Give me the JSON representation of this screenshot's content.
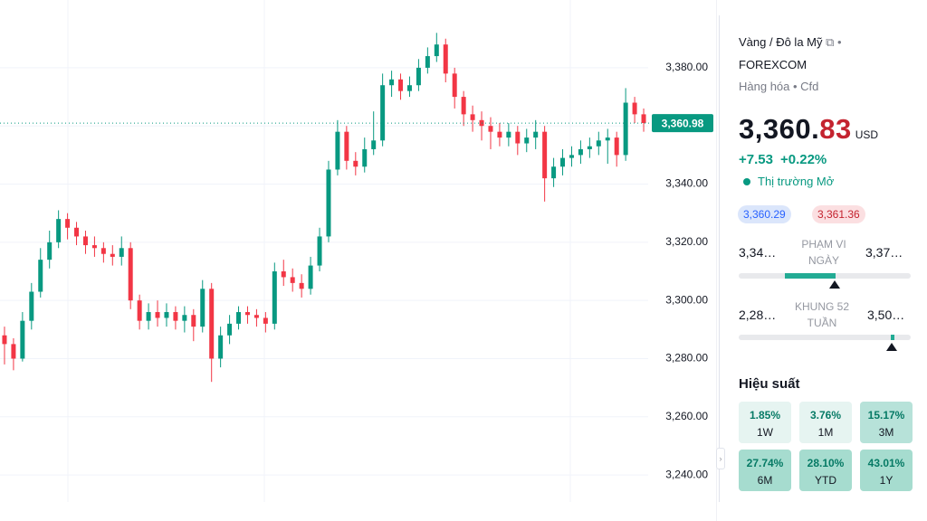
{
  "chart_data": {
    "type": "candlestick",
    "up_color": "#089981",
    "down_color": "#f23645",
    "open": [
      3288,
      3285,
      3280,
      3293,
      3303,
      3314,
      3320,
      3328,
      3325,
      3322,
      3319,
      3318,
      3316,
      3315,
      3318,
      3300,
      3293,
      3296,
      3294,
      3296,
      3293,
      3295,
      3291,
      3304,
      3280,
      3288,
      3292,
      3296,
      3295,
      3294,
      3292,
      3310,
      3308,
      3306,
      3304,
      3312,
      3322,
      3345,
      3358,
      3348,
      3346,
      3352,
      3355,
      3374,
      3376,
      3372,
      3374,
      3380,
      3384,
      3388,
      3378,
      3370,
      3364,
      3362,
      3360,
      3358,
      3356,
      3358,
      3354,
      3356,
      3358,
      3342,
      3346,
      3349,
      3350,
      3352,
      3353,
      3355,
      3356,
      3350,
      3368,
      3364
    ],
    "high": [
      3291,
      3287,
      3296,
      3306,
      3318,
      3324,
      3331,
      3330,
      3327,
      3324,
      3322,
      3320,
      3319,
      3322,
      3320,
      3302,
      3299,
      3300,
      3299,
      3298,
      3298,
      3297,
      3307,
      3306,
      3291,
      3295,
      3298,
      3298,
      3297,
      3296,
      3313,
      3314,
      3311,
      3309,
      3315,
      3325,
      3348,
      3362,
      3360,
      3351,
      3356,
      3365,
      3378,
      3379,
      3378,
      3377,
      3383,
      3387,
      3392,
      3390,
      3380,
      3372,
      3367,
      3365,
      3363,
      3361,
      3361,
      3360,
      3359,
      3362,
      3360,
      3349,
      3352,
      3353,
      3355,
      3356,
      3358,
      3359,
      3358,
      3373,
      3370,
      3366
    ],
    "low": [
      3278,
      3276,
      3279,
      3290,
      3301,
      3311,
      3318,
      3321,
      3319,
      3316,
      3315,
      3313,
      3312,
      3312,
      3297,
      3290,
      3290,
      3291,
      3291,
      3290,
      3289,
      3286,
      3289,
      3272,
      3277,
      3285,
      3290,
      3292,
      3291,
      3289,
      3290,
      3305,
      3303,
      3301,
      3302,
      3310,
      3320,
      3343,
      3345,
      3343,
      3344,
      3350,
      3353,
      3370,
      3369,
      3370,
      3372,
      3378,
      3382,
      3375,
      3366,
      3360,
      3358,
      3355,
      3352,
      3353,
      3353,
      3350,
      3351,
      3352,
      3334,
      3339,
      3343,
      3346,
      3347,
      3349,
      3350,
      3347,
      3346,
      3348,
      3361,
      3358
    ],
    "close": [
      3285,
      3280,
      3293,
      3303,
      3314,
      3320,
      3328,
      3325,
      3322,
      3319,
      3318,
      3316,
      3315,
      3318,
      3300,
      3293,
      3296,
      3294,
      3296,
      3293,
      3295,
      3291,
      3304,
      3280,
      3288,
      3292,
      3296,
      3295,
      3294,
      3292,
      3310,
      3308,
      3306,
      3304,
      3312,
      3322,
      3345,
      3358,
      3348,
      3346,
      3352,
      3355,
      3374,
      3376,
      3372,
      3374,
      3380,
      3384,
      3388,
      3378,
      3370,
      3364,
      3362,
      3360,
      3358,
      3356,
      3358,
      3354,
      3356,
      3358,
      3342,
      3346,
      3349,
      3350,
      3352,
      3353,
      3355,
      3356,
      3350,
      3368,
      3364,
      3361
    ],
    "ylim": [
      3230.7,
      3403.3
    ],
    "yticks": [
      {
        "value": 3240,
        "label": "3,240.00"
      },
      {
        "value": 3260,
        "label": "3,260.00"
      },
      {
        "value": 3280,
        "label": "3,280.00"
      },
      {
        "value": 3300,
        "label": "3,300.00"
      },
      {
        "value": 3320,
        "label": "3,320.00"
      },
      {
        "value": 3340,
        "label": "3,340.00"
      },
      {
        "value": 3360,
        "label": "3,360.00"
      },
      {
        "value": 3380,
        "label": "3,380.00"
      }
    ],
    "last_price": {
      "value": 3360.98,
      "label": "3,360.98"
    },
    "grid": true
  },
  "sidebar": {
    "symbol": "Vàng / Đô la Mỹ",
    "exchange": "FOREXCOM",
    "tags": [
      "Hàng hóa",
      "Cfd"
    ],
    "price_main": "3,360.",
    "price_decimal": "83",
    "currency": "USD",
    "change": "+7.53",
    "change_percent": "+0.22%",
    "status": "Thị trường Mở",
    "bid": "3,360.29",
    "ask": "3,361.36",
    "day_range": {
      "low": "3,34…",
      "label": "PHẠM VI NGÀY",
      "high": "3,37…"
    },
    "week52_range": {
      "low": "2,28…",
      "label": "KHUNG 52 TUẦN",
      "high": "3,50…"
    },
    "performance_title": "Hiệu suất",
    "performance": [
      {
        "value": "1.85%",
        "period": "1W"
      },
      {
        "value": "3.76%",
        "period": "1M"
      },
      {
        "value": "15.17%",
        "period": "3M"
      },
      {
        "value": "27.74%",
        "period": "6M"
      },
      {
        "value": "28.10%",
        "period": "YTD"
      },
      {
        "value": "43.01%",
        "period": "1Y"
      }
    ]
  }
}
